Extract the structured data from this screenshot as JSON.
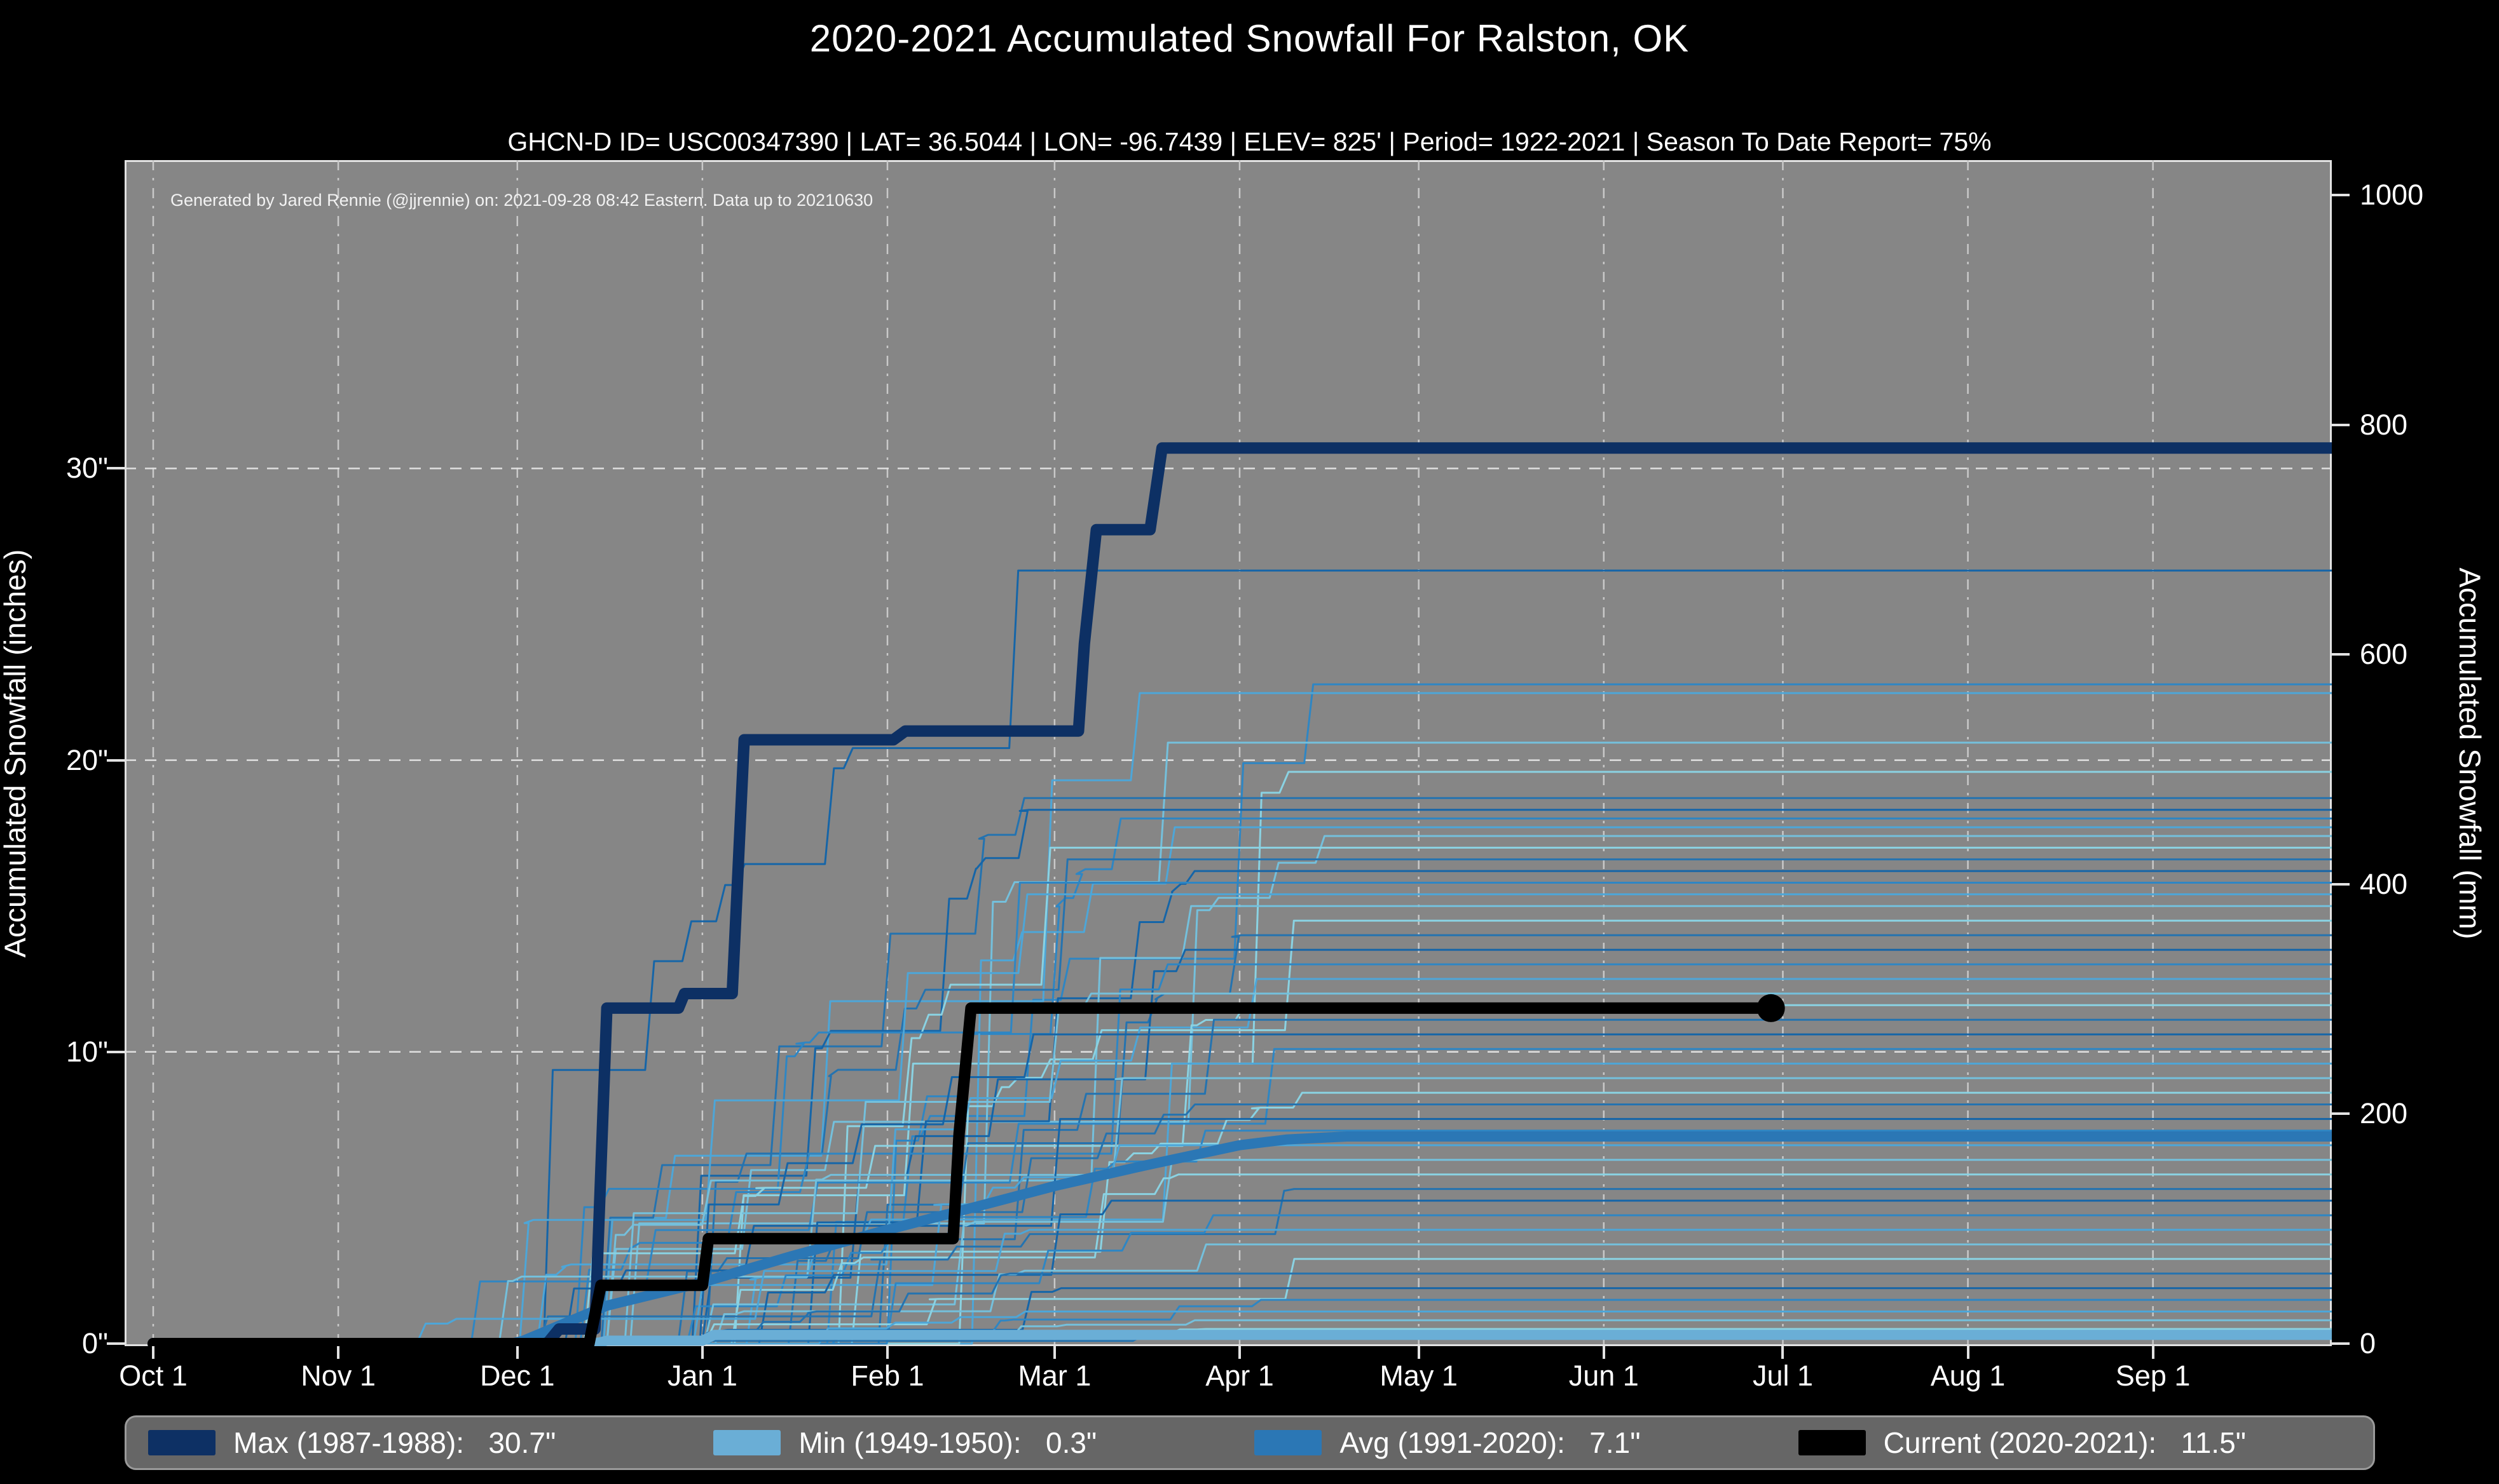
{
  "title": "2020-2021 Accumulated Snowfall For Ralston, OK",
  "subtitle": "GHCN-D ID= USC00347390 | LAT= 36.5044 | LON= -96.7439 | ELEV= 825' | Period= 1922-2021 | Season To Date Report= 75%",
  "annotation": "Generated by Jared Rennie (@jjrennie) on: 2021-09-28 08:42 Eastern. Data up to 20210630",
  "colors": {
    "figure_bg": "#000000",
    "plot_bg": "#868686",
    "grid": "#d8d8d8",
    "max_line": "#0d3064",
    "min_line": "#6aaed6",
    "avg_line": "#2b77b5",
    "current_line": "#000000",
    "legend_bg": "#666666"
  },
  "chart_data": {
    "type": "line",
    "x_axis": {
      "tick_labels": [
        "Oct 1",
        "Nov 1",
        "Dec 1",
        "Jan 1",
        "Feb 1",
        "Mar 1",
        "Apr 1",
        "May 1",
        "Jun 1",
        "Jul 1",
        "Aug 1",
        "Sep 1"
      ],
      "tick_days": [
        0,
        31,
        61,
        92,
        123,
        151,
        182,
        212,
        243,
        273,
        304,
        335
      ],
      "domain_days": [
        -5,
        366
      ]
    },
    "y_left": {
      "label": "Accumulated Snowfall (inches)",
      "tick_values": [
        0,
        10,
        20,
        30
      ],
      "tick_labels": [
        "0\"",
        "10\"",
        "20\"",
        "30\""
      ],
      "range_inches": [
        0,
        40.6
      ],
      "grid_at": [
        10,
        20,
        30
      ]
    },
    "y_right": {
      "label": "Accumulated Snowfall (mm)",
      "tick_values_mm": [
        0,
        200,
        400,
        600,
        800,
        1000
      ],
      "tick_labels": [
        "0",
        "200",
        "400",
        "600",
        "800",
        "1000"
      ],
      "mm_per_inch": 25.4
    },
    "series": [
      {
        "name": "max",
        "label": "Max (1987-1988)",
        "total": "30.7\"",
        "color": "#0d3064",
        "width": 18,
        "points": [
          [
            0,
            0
          ],
          [
            66,
            0
          ],
          [
            68,
            0.5
          ],
          [
            74,
            0.5
          ],
          [
            76,
            11.5
          ],
          [
            88,
            11.5
          ],
          [
            89,
            12.0
          ],
          [
            97,
            12.0
          ],
          [
            99,
            20.7
          ],
          [
            124,
            20.7
          ],
          [
            126,
            21.0
          ],
          [
            155,
            21.0
          ],
          [
            156,
            24.0
          ],
          [
            158,
            27.9
          ],
          [
            167,
            27.9
          ],
          [
            169,
            30.7
          ],
          [
            365,
            30.7
          ]
        ]
      },
      {
        "name": "avg",
        "label": "Avg (1991-2020)",
        "total": "7.1\"",
        "color": "#2b77b5",
        "width": 16,
        "points": [
          [
            0,
            0
          ],
          [
            60,
            0
          ],
          [
            62,
            0.1
          ],
          [
            76,
            1.3
          ],
          [
            92,
            2.1
          ],
          [
            107,
            3.0
          ],
          [
            123,
            3.9
          ],
          [
            138,
            4.7
          ],
          [
            151,
            5.4
          ],
          [
            166,
            6.1
          ],
          [
            182,
            6.8
          ],
          [
            190,
            7.0
          ],
          [
            200,
            7.1
          ],
          [
            365,
            7.1
          ]
        ]
      },
      {
        "name": "min",
        "label": "Min (1949-1950)",
        "total": "0.3\"",
        "color": "#6aaed6",
        "width": 16,
        "points": [
          [
            0,
            0
          ],
          [
            74,
            0
          ],
          [
            76,
            0.1
          ],
          [
            92,
            0.1
          ],
          [
            94,
            0.3
          ],
          [
            365,
            0.3
          ]
        ]
      },
      {
        "name": "current",
        "label": "Current (2020-2021)",
        "total": "11.5\"",
        "color": "#000000",
        "width": 18,
        "end_dot_day": 271,
        "end_dot_value": 11.5,
        "points": [
          [
            0,
            0
          ],
          [
            73,
            0
          ],
          [
            75,
            2.0
          ],
          [
            92,
            2.0
          ],
          [
            93,
            3.6
          ],
          [
            134,
            3.6
          ],
          [
            135,
            7.2
          ],
          [
            137,
            11.5
          ],
          [
            271,
            11.5
          ]
        ]
      }
    ],
    "background_seasons": {
      "comment": "thin historical season traces (1922-2021), stepped accumulations ending at these season totals in inches",
      "plateaus": [
        26.5,
        22.6,
        22.3,
        20.6,
        19.6,
        18.7,
        18.3,
        18.0,
        17.7,
        17.4,
        17.0,
        16.6,
        16.2,
        15.8,
        15.4,
        15.0,
        14.5,
        14.0,
        13.5,
        13.0,
        12.5,
        12.0,
        11.6,
        11.1,
        10.6,
        10.1,
        9.6,
        9.1,
        8.6,
        8.2,
        7.7,
        7.3,
        6.8,
        6.3,
        5.8,
        5.3,
        4.9,
        4.4,
        3.9,
        3.4,
        2.9,
        2.4,
        1.9,
        1.5,
        1.1,
        0.8,
        0.5,
        0.3
      ],
      "colors": [
        "#1565a8",
        "#2e86c4",
        "#4da6d8",
        "#74c0dc",
        "#8ad2e2",
        "#2473b0"
      ],
      "width": 3,
      "seed": 7
    }
  },
  "legend": {
    "items": [
      {
        "text": "Max (1987-1988):   30.7\"",
        "color": "#0d3064"
      },
      {
        "text": "Min (1949-1950):   0.3\"",
        "color": "#6aaed6"
      },
      {
        "text": "Avg (1991-2020):   7.1\"",
        "color": "#2b77b5"
      },
      {
        "text": "Current (2020-2021):   11.5\"",
        "color": "#000000"
      }
    ]
  }
}
